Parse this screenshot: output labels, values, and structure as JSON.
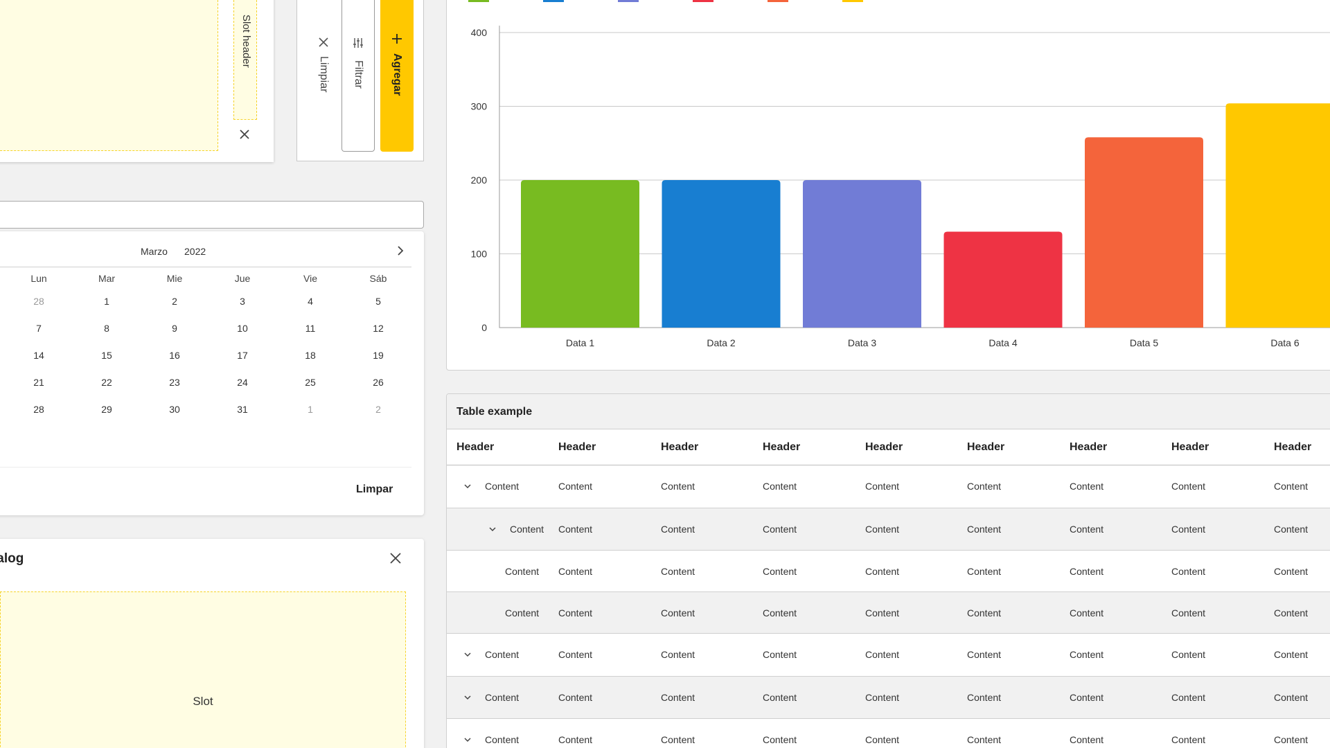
{
  "slot_panel": {
    "header_label": "Slot header",
    "close_icon": "close-icon"
  },
  "vertical_toolbar": {
    "clear_label": "Limpiar",
    "filter_label": "Filtrar",
    "add_label": "Agregar",
    "accent_color": "#ffc800"
  },
  "calendar": {
    "month": "Marzo",
    "year": "2022",
    "weekdays": [
      "Lun",
      "Mar",
      "Mie",
      "Jue",
      "Vie",
      "Sáb"
    ],
    "weeks": [
      [
        {
          "d": "28",
          "muted": true
        },
        {
          "d": "1"
        },
        {
          "d": "2"
        },
        {
          "d": "3"
        },
        {
          "d": "4"
        },
        {
          "d": "5"
        }
      ],
      [
        {
          "d": "7"
        },
        {
          "d": "8"
        },
        {
          "d": "9"
        },
        {
          "d": "10"
        },
        {
          "d": "11"
        },
        {
          "d": "12"
        }
      ],
      [
        {
          "d": "14"
        },
        {
          "d": "15"
        },
        {
          "d": "16"
        },
        {
          "d": "17"
        },
        {
          "d": "18"
        },
        {
          "d": "19"
        }
      ],
      [
        {
          "d": "21"
        },
        {
          "d": "22"
        },
        {
          "d": "23"
        },
        {
          "d": "24"
        },
        {
          "d": "25"
        },
        {
          "d": "26"
        }
      ],
      [
        {
          "d": "28"
        },
        {
          "d": "29"
        },
        {
          "d": "30"
        },
        {
          "d": "31"
        },
        {
          "d": "1",
          "muted": true
        },
        {
          "d": "2",
          "muted": true
        }
      ]
    ],
    "clear_label": "Limpar"
  },
  "dialog": {
    "title": "ialog",
    "slot_label": "Slot"
  },
  "chart_data": {
    "type": "bar",
    "categories": [
      "Data 1",
      "Data 2",
      "Data 3",
      "Data 4",
      "Data 5",
      "Data 6"
    ],
    "values": [
      200,
      200,
      200,
      130,
      258,
      304
    ],
    "colors": [
      "#78bb21",
      "#187ed1",
      "#717cd6",
      "#ee3344",
      "#f4643b",
      "#ffc800"
    ],
    "ylim": [
      0,
      400
    ],
    "yticks": [
      0,
      100,
      200,
      300,
      400
    ],
    "grid": true,
    "legend_position": "top",
    "title": "",
    "xlabel": "",
    "ylabel": ""
  },
  "table": {
    "title": "Table example",
    "headers": [
      "Header",
      "Header",
      "Header",
      "Header",
      "Header",
      "Header",
      "Header",
      "Header",
      "Header"
    ],
    "rows": [
      {
        "indent": 0,
        "chevron": true,
        "cells": [
          "Content",
          "Content",
          "Content",
          "Content",
          "Content",
          "Content",
          "Content",
          "Content",
          "Content"
        ]
      },
      {
        "indent": 1,
        "chevron": true,
        "cells": [
          "Content",
          "Content",
          "Content",
          "Content",
          "Content",
          "Content",
          "Content",
          "Content",
          "Content"
        ]
      },
      {
        "indent": 2,
        "chevron": false,
        "cells": [
          "Content",
          "Content",
          "Content",
          "Content",
          "Content",
          "Content",
          "Content",
          "Content",
          "Content"
        ]
      },
      {
        "indent": 2,
        "chevron": false,
        "cells": [
          "Content",
          "Content",
          "Content",
          "Content",
          "Content",
          "Content",
          "Content",
          "Content",
          "Content"
        ]
      },
      {
        "indent": 0,
        "chevron": true,
        "cells": [
          "Content",
          "Content",
          "Content",
          "Content",
          "Content",
          "Content",
          "Content",
          "Content",
          "Content"
        ]
      },
      {
        "indent": 0,
        "chevron": true,
        "cells": [
          "Content",
          "Content",
          "Content",
          "Content",
          "Content",
          "Content",
          "Content",
          "Content",
          "Content"
        ]
      },
      {
        "indent": 0,
        "chevron": true,
        "cells": [
          "Content",
          "Content",
          "Content",
          "Content",
          "Content",
          "Content",
          "Content",
          "Content",
          "Content"
        ]
      }
    ]
  }
}
